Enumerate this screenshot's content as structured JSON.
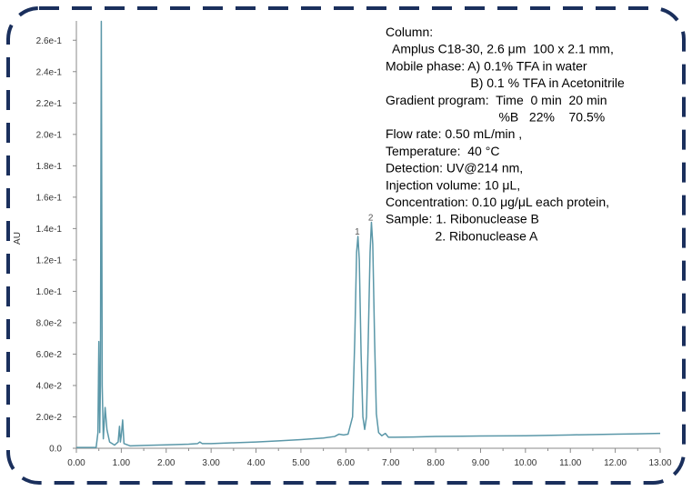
{
  "chart_data": {
    "type": "line",
    "title": "",
    "xlabel": "",
    "ylabel": "AU",
    "xlim": [
      0,
      13
    ],
    "ylim": [
      0,
      0.27
    ],
    "grid": false,
    "legend": "none",
    "x_ticks": [
      "0.00",
      "1.00",
      "2.00",
      "3.00",
      "4.00",
      "5.00",
      "6.00",
      "7.00",
      "8.00",
      "9.00",
      "10.00",
      "11.00",
      "12.00",
      "13.00"
    ],
    "x_minor_ticks": [
      0.5,
      1.5,
      2.5,
      3.5,
      4.5,
      5.5,
      6.5,
      7.5,
      8.5,
      9.5,
      10.5,
      11.5,
      12.5
    ],
    "y_ticks": [
      {
        "value": 0,
        "label": "0.0"
      },
      {
        "value": 0.02,
        "label": "2.0e-2"
      },
      {
        "value": 0.04,
        "label": "4.0e-2"
      },
      {
        "value": 0.06,
        "label": "6.0e-2"
      },
      {
        "value": 0.08,
        "label": "8.0e-2"
      },
      {
        "value": 0.1,
        "label": "1.0e-1"
      },
      {
        "value": 0.12,
        "label": "1.2e-1"
      },
      {
        "value": 0.14,
        "label": "1.4e-1"
      },
      {
        "value": 0.16,
        "label": "1.6e-1"
      },
      {
        "value": 0.18,
        "label": "1.8e-1"
      },
      {
        "value": 0.2,
        "label": "2.0e-1"
      },
      {
        "value": 0.22,
        "label": "2.2e-1"
      },
      {
        "value": 0.24,
        "label": "2.4e-1"
      },
      {
        "value": 0.26,
        "label": "2.6e-1"
      }
    ],
    "series": [
      {
        "color": "#5a97a8",
        "points": [
          [
            0.0,
            0.0005
          ],
          [
            0.44,
            0.0005
          ],
          [
            0.48,
            0.01
          ],
          [
            0.5,
            0.068
          ],
          [
            0.52,
            0.01
          ],
          [
            0.535,
            0.04
          ],
          [
            0.555,
            0.272
          ],
          [
            0.575,
            0.04
          ],
          [
            0.6,
            0.006
          ],
          [
            0.64,
            0.026
          ],
          [
            0.68,
            0.012
          ],
          [
            0.74,
            0.004
          ],
          [
            0.85,
            0.002
          ],
          [
            0.93,
            0.004
          ],
          [
            0.96,
            0.014
          ],
          [
            0.98,
            0.004
          ],
          [
            1.0,
            0.008
          ],
          [
            1.03,
            0.018
          ],
          [
            1.06,
            0.003
          ],
          [
            1.2,
            0.0015
          ],
          [
            1.5,
            0.0018
          ],
          [
            2.0,
            0.0022
          ],
          [
            2.5,
            0.0026
          ],
          [
            2.7,
            0.003
          ],
          [
            2.75,
            0.004
          ],
          [
            2.8,
            0.003
          ],
          [
            3.0,
            0.003
          ],
          [
            3.5,
            0.0035
          ],
          [
            4.0,
            0.004
          ],
          [
            4.5,
            0.0047
          ],
          [
            5.0,
            0.0055
          ],
          [
            5.5,
            0.0065
          ],
          [
            5.75,
            0.0075
          ],
          [
            5.85,
            0.009
          ],
          [
            5.95,
            0.0085
          ],
          [
            6.05,
            0.009
          ],
          [
            6.15,
            0.02
          ],
          [
            6.2,
            0.07
          ],
          [
            6.24,
            0.125
          ],
          [
            6.27,
            0.135
          ],
          [
            6.3,
            0.12
          ],
          [
            6.34,
            0.06
          ],
          [
            6.38,
            0.02
          ],
          [
            6.42,
            0.012
          ],
          [
            6.46,
            0.02
          ],
          [
            6.5,
            0.07
          ],
          [
            6.54,
            0.125
          ],
          [
            6.57,
            0.144
          ],
          [
            6.6,
            0.13
          ],
          [
            6.64,
            0.07
          ],
          [
            6.68,
            0.022
          ],
          [
            6.73,
            0.01
          ],
          [
            6.8,
            0.008
          ],
          [
            6.88,
            0.0095
          ],
          [
            6.95,
            0.007
          ],
          [
            7.1,
            0.007
          ],
          [
            7.5,
            0.0072
          ],
          [
            8.0,
            0.0075
          ],
          [
            9.0,
            0.0078
          ],
          [
            10.0,
            0.008
          ],
          [
            11.0,
            0.0085
          ],
          [
            12.0,
            0.009
          ],
          [
            12.5,
            0.0092
          ],
          [
            13.0,
            0.0095
          ]
        ]
      }
    ],
    "peak_labels": [
      {
        "label": "1",
        "x": 6.27,
        "y": 0.135
      },
      {
        "label": "2",
        "x": 6.57,
        "y": 0.144
      }
    ],
    "annotation_lines": [
      "Column:",
      "  Amplus C18-30, 2.6 μm  100 x 2.1 mm,",
      "Mobile phase: A) 0.1% TFA in water",
      "                        B) 0.1 % TFA in Acetonitrile",
      "Gradient program:  Time  0 min  20 min",
      "                                %B   22%    70.5%",
      "Flow rate: 0.50 mL/min ,",
      "Temperature:  40 °C",
      "Detection: UV@214 nm,",
      "Injection volume: 10 μL,",
      "Concentration: 0.10 μg/μL each protein,",
      "Sample: 1. Ribonuclease B",
      "              2. Ribonuclease A"
    ],
    "frame_color": "#1a2f5c"
  }
}
